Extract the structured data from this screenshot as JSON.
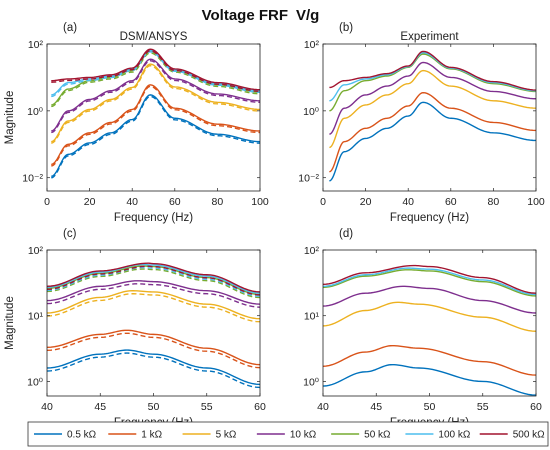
{
  "figure": {
    "title": "Voltage FRF",
    "title_math": "V/g"
  },
  "colors": {
    "0.5 kΩ": "#0072BD",
    "1 kΩ": "#D95319",
    "5 kΩ": "#EDB120",
    "10 kΩ": "#7E2F8E",
    "50 kΩ": "#77AC30",
    "100 kΩ": "#4DBEEE",
    "500 kΩ": "#A2142F"
  },
  "legend": [
    "0.5 kΩ",
    "1 kΩ",
    "5 kΩ",
    "10 kΩ",
    "50 kΩ",
    "100 kΩ",
    "500 kΩ"
  ],
  "chart_data": [
    {
      "panel": "(a)",
      "type": "line",
      "title": "DSM/ANSYS",
      "xlabel": "Frequency (Hz)",
      "ylabel": "Magnitude",
      "yscale": "log",
      "xlim": [
        0,
        100
      ],
      "ylim": [
        0.004,
        100
      ],
      "xticks": [
        0,
        20,
        40,
        60,
        80,
        100
      ],
      "yticks": [
        0.01,
        1,
        100
      ],
      "ytick_labels": [
        "10⁻²",
        "10⁰",
        "10²"
      ],
      "line_styles": [
        "solid",
        "dashed"
      ],
      "resonance_hz": 48.5,
      "series": [
        {
          "name": "0.5 kΩ",
          "peak": 3.0,
          "low_freq": [
            [
              2,
              0.011
            ],
            [
              10,
              0.05
            ],
            [
              20,
              0.11
            ],
            [
              30,
              0.22
            ],
            [
              40,
              0.55
            ],
            [
              48.5,
              3.0
            ],
            [
              60,
              0.6
            ],
            [
              80,
              0.2
            ],
            [
              100,
              0.12
            ]
          ]
        },
        {
          "name": "1 kΩ",
          "peak": 6.0,
          "low_freq": [
            [
              2,
              0.025
            ],
            [
              10,
              0.1
            ],
            [
              20,
              0.22
            ],
            [
              30,
              0.45
            ],
            [
              40,
              1.1
            ],
            [
              48.5,
              6.0
            ],
            [
              60,
              1.2
            ],
            [
              80,
              0.4
            ],
            [
              100,
              0.25
            ]
          ]
        },
        {
          "name": "5 kΩ",
          "peak": 25.0,
          "low_freq": [
            [
              2,
              0.12
            ],
            [
              10,
              0.5
            ],
            [
              20,
              1.1
            ],
            [
              30,
              2.2
            ],
            [
              40,
              5.0
            ],
            [
              48.5,
              25.0
            ],
            [
              60,
              5.2
            ],
            [
              80,
              1.8
            ],
            [
              100,
              1.1
            ]
          ]
        },
        {
          "name": "10 kΩ",
          "peak": 35.0,
          "low_freq": [
            [
              2,
              0.25
            ],
            [
              10,
              1.0
            ],
            [
              20,
              2.2
            ],
            [
              30,
              4.0
            ],
            [
              40,
              8.0
            ],
            [
              48.5,
              35.0
            ],
            [
              60,
              9.0
            ],
            [
              80,
              3.2
            ],
            [
              100,
              2.0
            ]
          ]
        },
        {
          "name": "50 kΩ",
          "peak": 60.0,
          "low_freq": [
            [
              2,
              1.5
            ],
            [
              10,
              4.5
            ],
            [
              20,
              8.0
            ],
            [
              30,
              10.0
            ],
            [
              40,
              16.0
            ],
            [
              48.5,
              60.0
            ],
            [
              60,
              16.0
            ],
            [
              80,
              6.0
            ],
            [
              100,
              3.6
            ]
          ]
        },
        {
          "name": "100 kΩ",
          "peak": 65.0,
          "low_freq": [
            [
              2,
              3.0
            ],
            [
              10,
              7.0
            ],
            [
              20,
              9.0
            ],
            [
              30,
              11.0
            ],
            [
              40,
              18.0
            ],
            [
              48.5,
              65.0
            ],
            [
              60,
              17.0
            ],
            [
              80,
              6.5
            ],
            [
              100,
              4.0
            ]
          ]
        },
        {
          "name": "500 kΩ",
          "peak": 70.0,
          "low_freq": [
            [
              2,
              8.0
            ],
            [
              10,
              9.0
            ],
            [
              20,
              10.0
            ],
            [
              30,
              12.0
            ],
            [
              40,
              19.0
            ],
            [
              48.5,
              70.0
            ],
            [
              60,
              18.0
            ],
            [
              80,
              7.0
            ],
            [
              100,
              4.3
            ]
          ]
        }
      ]
    },
    {
      "panel": "(b)",
      "type": "line",
      "title": "Experiment",
      "xlabel": "Frequency (Hz)",
      "ylabel": "",
      "yscale": "log",
      "xlim": [
        0,
        100
      ],
      "ylim": [
        0.004,
        100
      ],
      "xticks": [
        0,
        20,
        40,
        60,
        80,
        100
      ],
      "yticks": [
        0.01,
        1,
        100
      ],
      "ytick_labels": [
        "10⁻²",
        "10⁰",
        "10²"
      ],
      "resonance_hz": 47.0,
      "series": [
        {
          "name": "0.5 kΩ",
          "low_freq": [
            [
              3,
              0.008
            ],
            [
              10,
              0.06
            ],
            [
              20,
              0.15
            ],
            [
              30,
              0.3
            ],
            [
              40,
              0.7
            ],
            [
              47,
              1.8
            ],
            [
              60,
              0.6
            ],
            [
              80,
              0.22
            ],
            [
              100,
              0.13
            ]
          ]
        },
        {
          "name": "1 kΩ",
          "low_freq": [
            [
              3,
              0.015
            ],
            [
              10,
              0.12
            ],
            [
              20,
              0.3
            ],
            [
              30,
              0.6
            ],
            [
              40,
              1.4
            ],
            [
              47,
              3.5
            ],
            [
              60,
              1.2
            ],
            [
              80,
              0.45
            ],
            [
              100,
              0.26
            ]
          ]
        },
        {
          "name": "5 kΩ",
          "low_freq": [
            [
              3,
              0.08
            ],
            [
              10,
              0.6
            ],
            [
              20,
              1.5
            ],
            [
              30,
              3.0
            ],
            [
              40,
              6.5
            ],
            [
              47,
              16.0
            ],
            [
              60,
              5.5
            ],
            [
              80,
              2.0
            ],
            [
              100,
              1.2
            ]
          ]
        },
        {
          "name": "10 kΩ",
          "low_freq": [
            [
              3,
              0.2
            ],
            [
              10,
              1.2
            ],
            [
              20,
              3.0
            ],
            [
              30,
              5.5
            ],
            [
              40,
              11.0
            ],
            [
              47,
              28.0
            ],
            [
              60,
              10.0
            ],
            [
              80,
              3.8
            ],
            [
              100,
              2.3
            ]
          ]
        },
        {
          "name": "50 kΩ",
          "low_freq": [
            [
              3,
              1.0
            ],
            [
              10,
              4.0
            ],
            [
              20,
              8.0
            ],
            [
              30,
              11.0
            ],
            [
              40,
              20.0
            ],
            [
              47,
              50.0
            ],
            [
              60,
              18.0
            ],
            [
              80,
              6.5
            ],
            [
              100,
              3.8
            ]
          ]
        },
        {
          "name": "100 kΩ",
          "low_freq": [
            [
              3,
              2.0
            ],
            [
              10,
              6.0
            ],
            [
              20,
              9.0
            ],
            [
              30,
              12.0
            ],
            [
              40,
              21.0
            ],
            [
              47,
              55.0
            ],
            [
              60,
              19.0
            ],
            [
              80,
              7.0
            ],
            [
              100,
              4.0
            ]
          ]
        },
        {
          "name": "500 kΩ",
          "low_freq": [
            [
              3,
              5.0
            ],
            [
              10,
              8.0
            ],
            [
              20,
              10.0
            ],
            [
              30,
              13.0
            ],
            [
              40,
              22.0
            ],
            [
              47,
              60.0
            ],
            [
              60,
              20.0
            ],
            [
              80,
              7.5
            ],
            [
              100,
              4.2
            ]
          ]
        }
      ]
    },
    {
      "panel": "(c)",
      "type": "line",
      "title": "",
      "xlabel": "Frequency (Hz)",
      "ylabel": "Magnitude",
      "yscale": "log",
      "xlim": [
        40,
        60
      ],
      "ylim": [
        0.6,
        100
      ],
      "xticks": [
        40,
        45,
        50,
        55,
        60
      ],
      "yticks": [
        1,
        10,
        100
      ],
      "ytick_labels": [
        "10⁰",
        "10¹",
        "10²"
      ],
      "line_styles": [
        "solid",
        "dashed"
      ],
      "series": [
        {
          "name": "0.5 kΩ",
          "low_freq": [
            [
              40,
              1.6
            ],
            [
              45,
              2.6
            ],
            [
              47.5,
              3.0
            ],
            [
              50,
              2.6
            ],
            [
              55,
              1.6
            ],
            [
              60,
              0.9
            ]
          ]
        },
        {
          "name": "1 kΩ",
          "low_freq": [
            [
              40,
              3.3
            ],
            [
              45,
              5.2
            ],
            [
              47.5,
              6.0
            ],
            [
              50,
              5.2
            ],
            [
              55,
              3.2
            ],
            [
              60,
              1.8
            ]
          ]
        },
        {
          "name": "5 kΩ",
          "low_freq": [
            [
              40,
              11.0
            ],
            [
              45,
              19.0
            ],
            [
              48,
              24.0
            ],
            [
              50,
              23.0
            ],
            [
              55,
              15.0
            ],
            [
              60,
              9.0
            ]
          ]
        },
        {
          "name": "10 kΩ",
          "low_freq": [
            [
              40,
              17.0
            ],
            [
              45,
              28.0
            ],
            [
              48.5,
              34.0
            ],
            [
              50,
              33.0
            ],
            [
              55,
              24.0
            ],
            [
              60,
              15.0
            ]
          ]
        },
        {
          "name": "50 kΩ",
          "low_freq": [
            [
              40,
              26.0
            ],
            [
              45,
              44.0
            ],
            [
              49,
              57.0
            ],
            [
              50,
              56.0
            ],
            [
              55,
              38.0
            ],
            [
              60,
              21.0
            ]
          ]
        },
        {
          "name": "100 kΩ",
          "low_freq": [
            [
              40,
              27.0
            ],
            [
              45,
              46.0
            ],
            [
              49,
              60.0
            ],
            [
              50,
              59.0
            ],
            [
              55,
              40.0
            ],
            [
              60,
              22.0
            ]
          ]
        },
        {
          "name": "500 kΩ",
          "low_freq": [
            [
              40,
              28.0
            ],
            [
              45,
              48.0
            ],
            [
              49.5,
              63.0
            ],
            [
              50,
              62.0
            ],
            [
              55,
              42.0
            ],
            [
              60,
              23.0
            ]
          ]
        }
      ]
    },
    {
      "panel": "(d)",
      "type": "line",
      "title": "",
      "xlabel": "Frequency (Hz)",
      "ylabel": "",
      "yscale": "log",
      "xlim": [
        40,
        60
      ],
      "ylim": [
        0.6,
        100
      ],
      "xticks": [
        40,
        45,
        50,
        55,
        60
      ],
      "yticks": [
        1,
        10,
        100
      ],
      "ytick_labels": [
        "10⁰",
        "10¹",
        "10²"
      ],
      "series": [
        {
          "name": "0.5 kΩ",
          "low_freq": [
            [
              40,
              0.85
            ],
            [
              44,
              1.4
            ],
            [
              46.5,
              1.8
            ],
            [
              49,
              1.6
            ],
            [
              55,
              1.0
            ],
            [
              60,
              0.62
            ]
          ]
        },
        {
          "name": "1 kΩ",
          "low_freq": [
            [
              40,
              1.7
            ],
            [
              44,
              2.8
            ],
            [
              46.5,
              3.5
            ],
            [
              49,
              3.2
            ],
            [
              55,
              2.0
            ],
            [
              60,
              1.25
            ]
          ]
        },
        {
          "name": "5 kΩ",
          "low_freq": [
            [
              40,
              7.0
            ],
            [
              44,
              12.0
            ],
            [
              47,
              16.0
            ],
            [
              49,
              15.0
            ],
            [
              55,
              9.5
            ],
            [
              60,
              5.8
            ]
          ]
        },
        {
          "name": "10 kΩ",
          "low_freq": [
            [
              40,
              14.0
            ],
            [
              44,
              22.0
            ],
            [
              47.5,
              28.0
            ],
            [
              50,
              26.0
            ],
            [
              55,
              17.0
            ],
            [
              60,
              11.0
            ]
          ]
        },
        {
          "name": "50 kΩ",
          "low_freq": [
            [
              40,
              27.0
            ],
            [
              44,
              40.0
            ],
            [
              48,
              50.0
            ],
            [
              50,
              48.0
            ],
            [
              55,
              33.0
            ],
            [
              60,
              20.0
            ]
          ]
        },
        {
          "name": "100 kΩ",
          "low_freq": [
            [
              40,
              28.0
            ],
            [
              44,
              42.0
            ],
            [
              48,
              53.0
            ],
            [
              50,
              51.0
            ],
            [
              55,
              35.0
            ],
            [
              60,
              21.0
            ]
          ]
        },
        {
          "name": "500 kΩ",
          "low_freq": [
            [
              40,
              30.0
            ],
            [
              44,
              45.0
            ],
            [
              48.5,
              58.0
            ],
            [
              50,
              56.0
            ],
            [
              55,
              38.0
            ],
            [
              60,
              22.0
            ]
          ]
        }
      ]
    }
  ]
}
